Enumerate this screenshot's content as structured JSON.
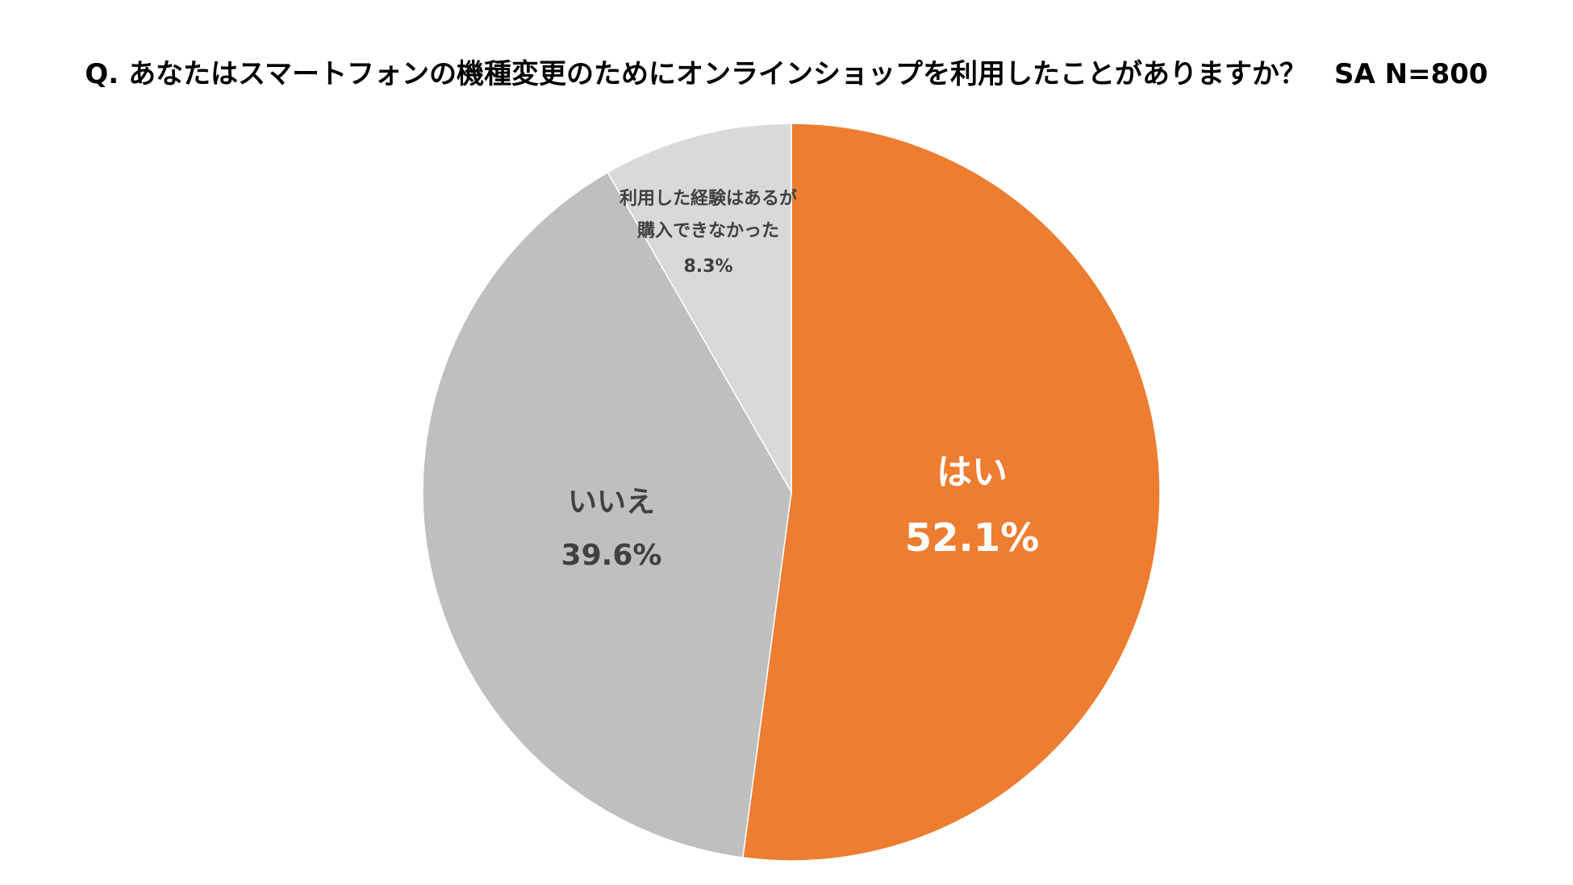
{
  "chart_data": {
    "type": "pie",
    "title": "Q. あなたはスマートフォンの機種変更のためにオンラインショップを利用したことがありますか？　SA N=800",
    "legend": "none",
    "slices": [
      {
        "name": "はい",
        "value": 52.1,
        "label": "52.1%",
        "color": "#ED7D31",
        "text_color": "#FFFFFF"
      },
      {
        "name": "いいえ",
        "value": 39.6,
        "label": "39.6%",
        "color": "#BFBFBF",
        "text_color": "#404040"
      },
      {
        "name": "利用した経験はあるが\n購入できなかった",
        "value": 8.3,
        "label": "8.3%",
        "color": "#D9D9D9",
        "text_color": "#404040"
      }
    ]
  }
}
